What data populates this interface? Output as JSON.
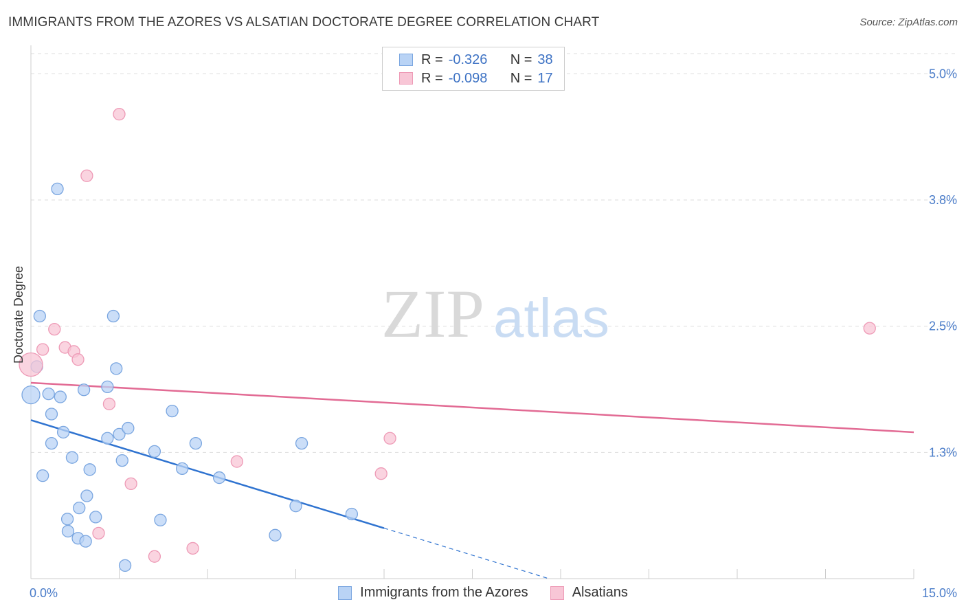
{
  "header": {
    "title": "IMMIGRANTS FROM THE AZORES VS ALSATIAN DOCTORATE DEGREE CORRELATION CHART",
    "source": "Source: ZipAtlas.com"
  },
  "watermark": {
    "zip": "ZIP",
    "atlas": "atlas"
  },
  "legend": {
    "rows": [
      {
        "r_label": "R =",
        "r_value": "-0.326",
        "n_label": "N =",
        "n_value": "38"
      },
      {
        "r_label": "R =",
        "r_value": "-0.098",
        "n_label": "N =",
        "n_value": "17"
      }
    ]
  },
  "colors": {
    "blue_fill": "#b9d3f5",
    "blue_stroke": "#7aa6e0",
    "blue_line": "#2f73d0",
    "pink_fill": "#f8c6d6",
    "pink_stroke": "#ee9ab6",
    "pink_line": "#e26b94",
    "tick_text": "#4a7cc9",
    "grid": "#dddddd"
  },
  "chart_data": {
    "type": "scatter",
    "title": "IMMIGRANTS FROM THE AZORES VS ALSATIAN DOCTORATE DEGREE CORRELATION CHART",
    "xlabel": "",
    "ylabel": "Doctorate Degree",
    "xlim": [
      0,
      15
    ],
    "ylim": [
      0,
      5.2
    ],
    "x_tick_labels": [
      "0.0%",
      "15.0%"
    ],
    "y_ticks": [
      1.25,
      2.5,
      3.75,
      5.0
    ],
    "y_tick_labels": [
      "1.3%",
      "2.5%",
      "3.8%",
      "5.0%"
    ],
    "grid": true,
    "legend_position": "bottom-center",
    "series": [
      {
        "name": "Immigrants from the Azores",
        "color": "#b9d3f5",
        "points": [
          [
            0.45,
            3.86
          ],
          [
            0.15,
            2.6
          ],
          [
            0.1,
            2.1
          ],
          [
            0.0,
            1.82
          ],
          [
            0.3,
            1.83
          ],
          [
            0.5,
            1.8
          ],
          [
            0.35,
            1.63
          ],
          [
            0.55,
            1.45
          ],
          [
            0.35,
            1.34
          ],
          [
            0.7,
            1.2
          ],
          [
            0.2,
            1.02
          ],
          [
            1.0,
            1.08
          ],
          [
            1.3,
            1.39
          ],
          [
            1.5,
            1.43
          ],
          [
            1.65,
            1.49
          ],
          [
            1.55,
            1.17
          ],
          [
            0.9,
            1.87
          ],
          [
            1.3,
            1.9
          ],
          [
            1.45,
            2.08
          ],
          [
            1.4,
            2.6
          ],
          [
            2.4,
            1.66
          ],
          [
            2.1,
            1.26
          ],
          [
            2.8,
            1.34
          ],
          [
            2.57,
            1.09
          ],
          [
            3.2,
            1.0
          ],
          [
            0.95,
            0.82
          ],
          [
            0.82,
            0.7
          ],
          [
            1.1,
            0.61
          ],
          [
            0.62,
            0.59
          ],
          [
            0.63,
            0.47
          ],
          [
            0.8,
            0.4
          ],
          [
            0.93,
            0.37
          ],
          [
            2.2,
            0.58
          ],
          [
            4.6,
            1.34
          ],
          [
            4.5,
            0.72
          ],
          [
            5.45,
            0.64
          ],
          [
            4.15,
            0.43
          ],
          [
            1.6,
            0.13
          ]
        ]
      },
      {
        "name": "Alsatians",
        "color": "#f8c6d6",
        "points": [
          [
            1.5,
            4.6
          ],
          [
            0.95,
            3.99
          ],
          [
            0.4,
            2.47
          ],
          [
            0.2,
            2.27
          ],
          [
            0.58,
            2.29
          ],
          [
            0.73,
            2.25
          ],
          [
            0.8,
            2.17
          ],
          [
            0.0,
            2.12
          ],
          [
            1.33,
            1.73
          ],
          [
            3.5,
            1.16
          ],
          [
            6.1,
            1.39
          ],
          [
            5.95,
            1.04
          ],
          [
            1.7,
            0.94
          ],
          [
            1.15,
            0.45
          ],
          [
            2.1,
            0.22
          ],
          [
            2.75,
            0.3
          ],
          [
            14.25,
            2.48
          ]
        ]
      }
    ],
    "trendlines": [
      {
        "series": "Immigrants from the Azores",
        "solid": [
          [
            0,
            1.57
          ],
          [
            6.0,
            0.5
          ]
        ],
        "dashed": [
          [
            6.0,
            0.5
          ],
          [
            8.8,
            0.0
          ]
        ]
      },
      {
        "series": "Alsatians",
        "solid": [
          [
            0,
            1.94
          ],
          [
            15,
            1.45
          ]
        ]
      }
    ]
  }
}
